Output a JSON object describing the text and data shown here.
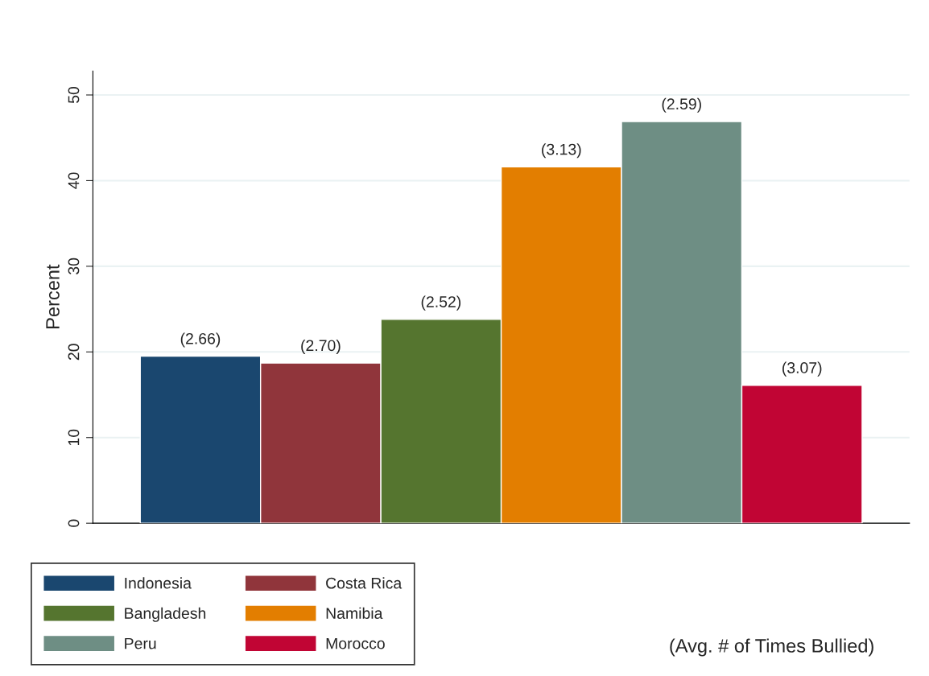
{
  "chart_data": {
    "type": "bar",
    "ylabel": "Percent",
    "categories": [
      null
    ],
    "series": [
      {
        "name": "Indonesia",
        "color": "#1a476f",
        "values": [
          19.5
        ]
      },
      {
        "name": "Costa Rica",
        "color": "#90353b",
        "values": [
          18.7
        ]
      },
      {
        "name": "Bangladesh",
        "color": "#55752f",
        "values": [
          23.8
        ]
      },
      {
        "name": "Namibia",
        "color": "#e37e00",
        "values": [
          41.6
        ]
      },
      {
        "name": "Peru",
        "color": "#6e8e84",
        "values": [
          46.9
        ]
      },
      {
        "name": "Morocco",
        "color": "#c10534",
        "values": [
          16.1
        ]
      }
    ],
    "ylim": [
      0,
      52.8
    ],
    "yticks": [
      0,
      10,
      20,
      30,
      40,
      50
    ],
    "grid": "y",
    "legend": "bottom left",
    "annotations": [
      {
        "text": "(2.66)",
        "y": 19.5
      },
      {
        "text": "(2.70)",
        "y": 18.7
      },
      {
        "text": "(2.52)",
        "y": 23.8
      },
      {
        "text": "(3.13)",
        "y": 41.6
      },
      {
        "text": "(2.59)",
        "y": 46.9
      },
      {
        "text": "(3.07)",
        "y": 16.1
      },
      "(Avg. # of Times Bullied)"
    ]
  }
}
